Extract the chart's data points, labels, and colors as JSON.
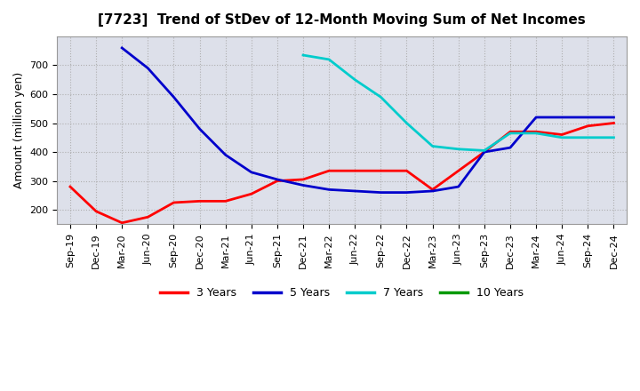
{
  "title": "[7723]  Trend of StDev of 12-Month Moving Sum of Net Incomes",
  "ylabel": "Amount (million yen)",
  "background_color": "#ffffff",
  "grid_color": "#aaaaaa",
  "ylim": [
    150,
    800
  ],
  "yticks": [
    200,
    300,
    400,
    500,
    600,
    700
  ],
  "xtick_labels": [
    "Sep-19",
    "Dec-19",
    "Mar-20",
    "Jun-20",
    "Sep-20",
    "Dec-20",
    "Mar-21",
    "Jun-21",
    "Sep-21",
    "Dec-21",
    "Mar-22",
    "Jun-22",
    "Sep-22",
    "Dec-22",
    "Mar-23",
    "Jun-23",
    "Sep-23",
    "Dec-23",
    "Mar-24",
    "Jun-24",
    "Sep-24",
    "Dec-24"
  ],
  "series": {
    "3 Years": {
      "color": "#ff0000",
      "x_indices": [
        0,
        1,
        2,
        3,
        4,
        5,
        6,
        7,
        8,
        9,
        10,
        11,
        12,
        13,
        14,
        15,
        16,
        17,
        18,
        19,
        20,
        21
      ],
      "values": [
        280,
        195,
        155,
        175,
        225,
        230,
        230,
        255,
        300,
        305,
        335,
        335,
        335,
        335,
        270,
        335,
        400,
        470,
        470,
        460,
        490,
        500
      ]
    },
    "5 Years": {
      "color": "#0000cc",
      "x_indices": [
        2,
        3,
        4,
        5,
        6,
        7,
        8,
        9,
        10,
        11,
        12,
        13,
        14,
        15,
        16,
        17,
        18,
        19,
        20,
        21
      ],
      "values": [
        760,
        690,
        590,
        480,
        390,
        330,
        305,
        285,
        270,
        265,
        260,
        260,
        265,
        280,
        400,
        415,
        520,
        520,
        520,
        520
      ]
    },
    "7 Years": {
      "color": "#00cccc",
      "x_indices": [
        9,
        10,
        11,
        12,
        13,
        14,
        15,
        16,
        17,
        18,
        19,
        20,
        21
      ],
      "values": [
        735,
        720,
        650,
        590,
        500,
        420,
        410,
        405,
        465,
        465,
        450,
        450,
        450
      ]
    },
    "10 Years": {
      "color": "#009900",
      "x_indices": [],
      "values": []
    }
  },
  "legend_labels": [
    "3 Years",
    "5 Years",
    "7 Years",
    "10 Years"
  ],
  "legend_colors": [
    "#ff0000",
    "#0000cc",
    "#00cccc",
    "#009900"
  ]
}
